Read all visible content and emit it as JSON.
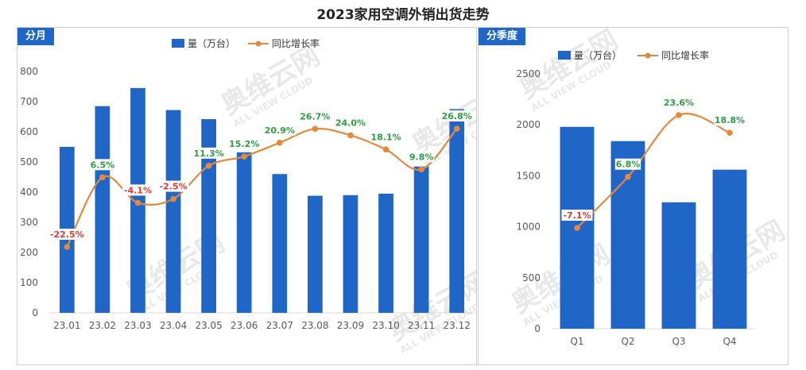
{
  "title": "2023家用空调外销出货走势",
  "colors": {
    "bar": "#1f66c6",
    "line": "#e3893e",
    "neg": "#e53935",
    "pos": "#2e9e44",
    "tag": "#1f66c6"
  },
  "watermark": {
    "brand": "奥维云网",
    "en": "ALL VIEW CLOUD"
  },
  "chart_data": [
    {
      "type": "bar",
      "panel_label": "分月",
      "categories": [
        "23.01",
        "23.02",
        "23.03",
        "23.04",
        "23.05",
        "23.06",
        "23.07",
        "23.08",
        "23.09",
        "23.10",
        "23.11",
        "23.12"
      ],
      "series": [
        {
          "name": "量（万台）",
          "type": "bar",
          "values": [
            550,
            685,
            745,
            672,
            642,
            532,
            460,
            388,
            390,
            395,
            485,
            675
          ]
        },
        {
          "name": "同比增长率",
          "type": "line",
          "values": [
            -22.5,
            6.5,
            -4.1,
            -2.5,
            11.3,
            15.2,
            20.9,
            26.7,
            24.0,
            18.1,
            9.8,
            26.8
          ],
          "labels": [
            "-22.5%",
            "6.5%",
            "-4.1%",
            "-2.5%",
            "11.3%",
            "15.2%",
            "20.9%",
            "26.7%",
            "24.0%",
            "18.1%",
            "9.8%",
            "26.8%"
          ]
        }
      ],
      "yticks": [
        "0",
        "100",
        "200",
        "300",
        "400",
        "500",
        "600",
        "700",
        "800"
      ],
      "ylim": [
        0,
        800
      ],
      "grid": false,
      "legend": "top-center"
    },
    {
      "type": "bar",
      "panel_label": "分季度",
      "categories": [
        "Q1",
        "Q2",
        "Q3",
        "Q4"
      ],
      "series": [
        {
          "name": "量（万台）",
          "type": "bar",
          "values": [
            1980,
            1840,
            1240,
            1560
          ]
        },
        {
          "name": "同比增长率",
          "type": "line",
          "values": [
            -7.1,
            6.8,
            23.6,
            18.8
          ],
          "labels": [
            "-7.1%",
            "6.8%",
            "23.6%",
            "18.8%"
          ]
        }
      ],
      "yticks": [
        "0",
        "500",
        "1000",
        "1500",
        "2000",
        "2500"
      ],
      "ylim": [
        0,
        2500
      ],
      "grid": false,
      "legend": "top-center"
    }
  ]
}
